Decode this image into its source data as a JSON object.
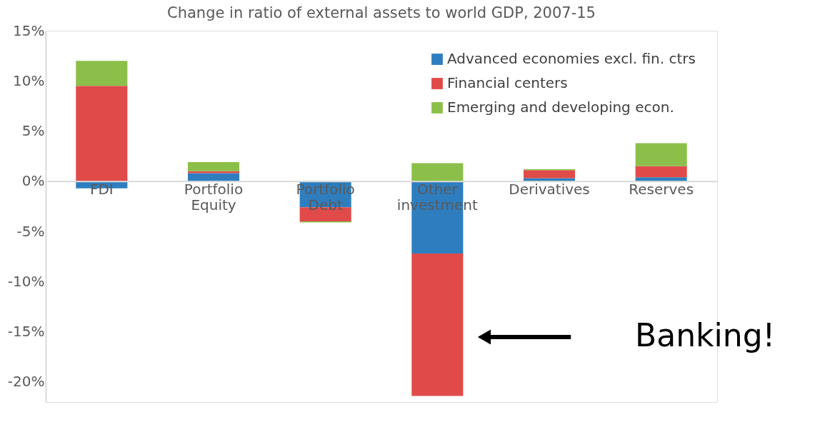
{
  "chart_data": {
    "type": "bar",
    "title": "Change in ratio of external assets to world GDP, 2007-15",
    "categories": [
      "FDI",
      "Portfolio Equity",
      "Portfolio Debt",
      "Other investment",
      "Derivatives",
      "Reserves"
    ],
    "stacked": true,
    "series": [
      {
        "name": "Advanced economies excl. fin. ctrs",
        "color": "#2e7ebf",
        "values": [
          -0.7,
          0.8,
          -2.6,
          -7.2,
          0.3,
          0.4
        ]
      },
      {
        "name": "Financial centers",
        "color": "#e04b4a",
        "values": [
          9.5,
          0.2,
          -1.4,
          -14.2,
          0.8,
          1.1
        ]
      },
      {
        "name": "Emerging and developing econ.",
        "color": "#8cbf4a",
        "values": [
          2.5,
          0.9,
          -0.1,
          1.8,
          0.1,
          2.3
        ]
      }
    ],
    "ylim": [
      -22,
      15
    ],
    "yticks": [
      {
        "value": -20,
        "label": "-20%"
      },
      {
        "value": -15,
        "label": "-15%"
      },
      {
        "value": -10,
        "label": "-10%"
      },
      {
        "value": -5,
        "label": "-5%"
      },
      {
        "value": 0,
        "label": "0%"
      },
      {
        "value": 5,
        "label": "5%"
      },
      {
        "value": 10,
        "label": "10%"
      },
      {
        "value": 15,
        "label": "15%"
      }
    ],
    "annotations": [
      "Banking!"
    ],
    "legend": "top right",
    "grid": false
  }
}
